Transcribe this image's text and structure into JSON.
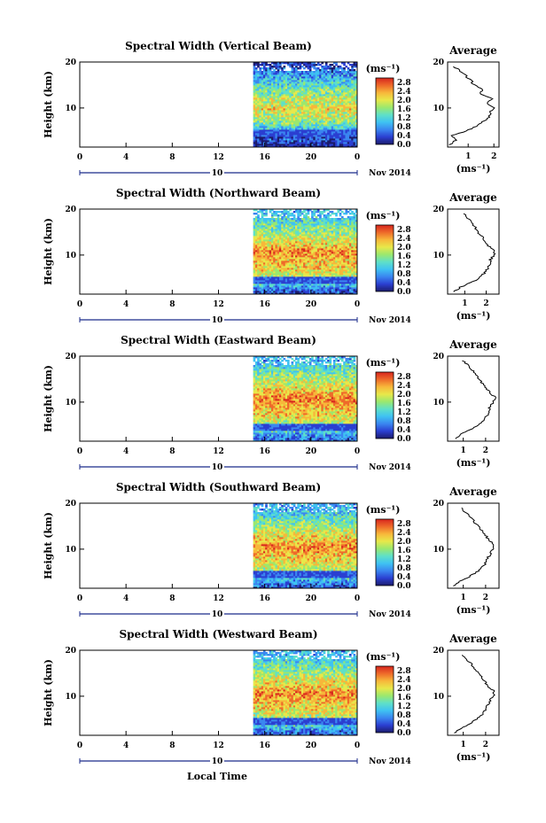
{
  "chart_data": {
    "type": "heatmap",
    "colorbar": {
      "unit_label": "(ms⁻¹)",
      "ticks": [
        "2.8",
        "2.4",
        "2.0",
        "1.6",
        "1.2",
        "0.8",
        "0.4",
        "0.0"
      ],
      "range": [
        0.0,
        3.0
      ],
      "colors": [
        "#1b1b6b",
        "#2b3fd1",
        "#3a86f0",
        "#3fc2f2",
        "#5fe0c8",
        "#9be86e",
        "#e8e84a",
        "#f7b73a",
        "#ee6a2a",
        "#d7261e"
      ]
    },
    "x_axis": {
      "ticks": [
        "0",
        "4",
        "8",
        "12",
        "16",
        "20",
        "0"
      ],
      "range": [
        0,
        24
      ],
      "date_label": "10",
      "month_label": "Nov 2014",
      "xlabel": "Local Time"
    },
    "y_axis": {
      "label": "Height (km)",
      "ticks": [
        "20",
        "10"
      ],
      "range": [
        1.5,
        20
      ]
    },
    "data_start_hour": 15,
    "average_panel": {
      "title": "Average",
      "xlabel": "(ms⁻¹)"
    },
    "panels": [
      {
        "title": "Spectral Width (Vertical Beam)",
        "avg_ticks": [
          "1",
          "2"
        ],
        "avg_xlim": [
          0.2,
          2.2
        ],
        "profile": {
          "height": [
            2,
            3,
            4,
            5,
            6,
            7,
            8,
            9,
            10,
            11,
            12,
            13,
            14,
            15,
            16,
            17,
            18,
            19
          ],
          "width": [
            0.25,
            0.55,
            0.35,
            0.9,
            1.3,
            1.55,
            1.8,
            1.85,
            2.05,
            1.75,
            1.9,
            1.5,
            1.55,
            1.25,
            1.1,
            0.9,
            0.7,
            0.45
          ]
        }
      },
      {
        "title": "Spectral Width (Northward Beam)",
        "avg_ticks": [
          "1",
          "2"
        ],
        "avg_xlim": [
          0.2,
          2.6
        ],
        "profile": {
          "height": [
            2,
            3,
            4,
            5,
            6,
            7,
            8,
            9,
            10,
            11,
            12,
            13,
            14,
            15,
            16,
            17,
            18,
            19
          ],
          "width": [
            0.5,
            0.8,
            1.3,
            1.7,
            1.9,
            2.05,
            2.15,
            2.2,
            2.35,
            2.4,
            2.1,
            1.95,
            1.8,
            1.6,
            1.5,
            1.35,
            1.15,
            1.0
          ]
        }
      },
      {
        "title": "Spectral Width (Eastward Beam)",
        "avg_ticks": [
          "1",
          "2"
        ],
        "avg_xlim": [
          0.3,
          2.6
        ],
        "profile": {
          "height": [
            2,
            3,
            4,
            5,
            6,
            7,
            8,
            9,
            10,
            11,
            12,
            13,
            14,
            15,
            16,
            17,
            18,
            19
          ],
          "width": [
            0.6,
            0.9,
            1.3,
            1.65,
            1.9,
            2.05,
            2.15,
            2.2,
            2.35,
            2.45,
            2.2,
            2.05,
            1.85,
            1.7,
            1.55,
            1.4,
            1.2,
            1.0
          ]
        }
      },
      {
        "title": "Spectral Width (Southward Beam)",
        "avg_ticks": [
          "1",
          "2"
        ],
        "avg_xlim": [
          0.3,
          2.6
        ],
        "profile": {
          "height": [
            2,
            3,
            4,
            5,
            6,
            7,
            8,
            9,
            10,
            11,
            12,
            13,
            14,
            15,
            16,
            17,
            18,
            19
          ],
          "width": [
            0.6,
            0.85,
            1.25,
            1.6,
            1.85,
            2.0,
            2.1,
            2.2,
            2.35,
            2.4,
            2.15,
            2.0,
            1.85,
            1.65,
            1.5,
            1.3,
            1.1,
            0.95
          ]
        }
      },
      {
        "title": "Spectral Width (Westward Beam)",
        "avg_ticks": [
          "1",
          "2"
        ],
        "avg_xlim": [
          0.3,
          2.6
        ],
        "profile": {
          "height": [
            2,
            3,
            4,
            5,
            6,
            7,
            8,
            9,
            10,
            11,
            12,
            13,
            14,
            15,
            16,
            17,
            18,
            19
          ],
          "width": [
            0.6,
            0.9,
            1.3,
            1.6,
            1.85,
            2.0,
            2.1,
            2.2,
            2.35,
            2.4,
            2.15,
            2.0,
            1.85,
            1.7,
            1.5,
            1.35,
            1.15,
            1.0
          ]
        }
      }
    ]
  }
}
